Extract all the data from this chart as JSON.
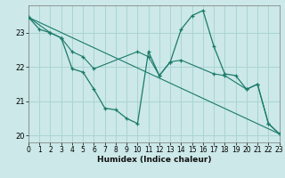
{
  "xlabel": "Humidex (Indice chaleur)",
  "background_color": "#cce8e8",
  "grid_color": "#aad4d4",
  "line_color": "#1a7a6a",
  "xlim": [
    0,
    23
  ],
  "ylim": [
    19.8,
    23.8
  ],
  "xticks": [
    0,
    1,
    2,
    3,
    4,
    5,
    6,
    7,
    8,
    9,
    10,
    11,
    12,
    13,
    14,
    15,
    16,
    17,
    18,
    19,
    20,
    21,
    22,
    23
  ],
  "yticks": [
    20,
    21,
    22,
    23
  ],
  "series_zigzag": {
    "x": [
      0,
      1,
      2,
      3,
      4,
      5,
      6,
      7,
      8,
      9,
      10,
      11,
      12,
      13,
      14,
      15,
      16,
      17,
      18,
      19,
      20,
      21,
      22,
      23
    ],
    "y": [
      23.45,
      23.1,
      23.0,
      22.85,
      21.95,
      21.85,
      21.35,
      20.8,
      20.75,
      20.5,
      20.35,
      22.45,
      21.75,
      22.15,
      23.1,
      23.5,
      23.65,
      22.6,
      21.8,
      21.75,
      21.35,
      21.5,
      20.35,
      20.05
    ]
  },
  "series_smooth": {
    "x": [
      0,
      2,
      3,
      4,
      5,
      6,
      10,
      11,
      12,
      13,
      14,
      17,
      18,
      20,
      21,
      22,
      23
    ],
    "y": [
      23.45,
      23.0,
      22.85,
      22.45,
      22.3,
      21.95,
      22.45,
      22.3,
      21.75,
      22.15,
      22.2,
      21.8,
      21.75,
      21.35,
      21.5,
      20.35,
      20.05
    ]
  },
  "series_linear": {
    "x": [
      0,
      23
    ],
    "y": [
      23.45,
      20.05
    ]
  }
}
